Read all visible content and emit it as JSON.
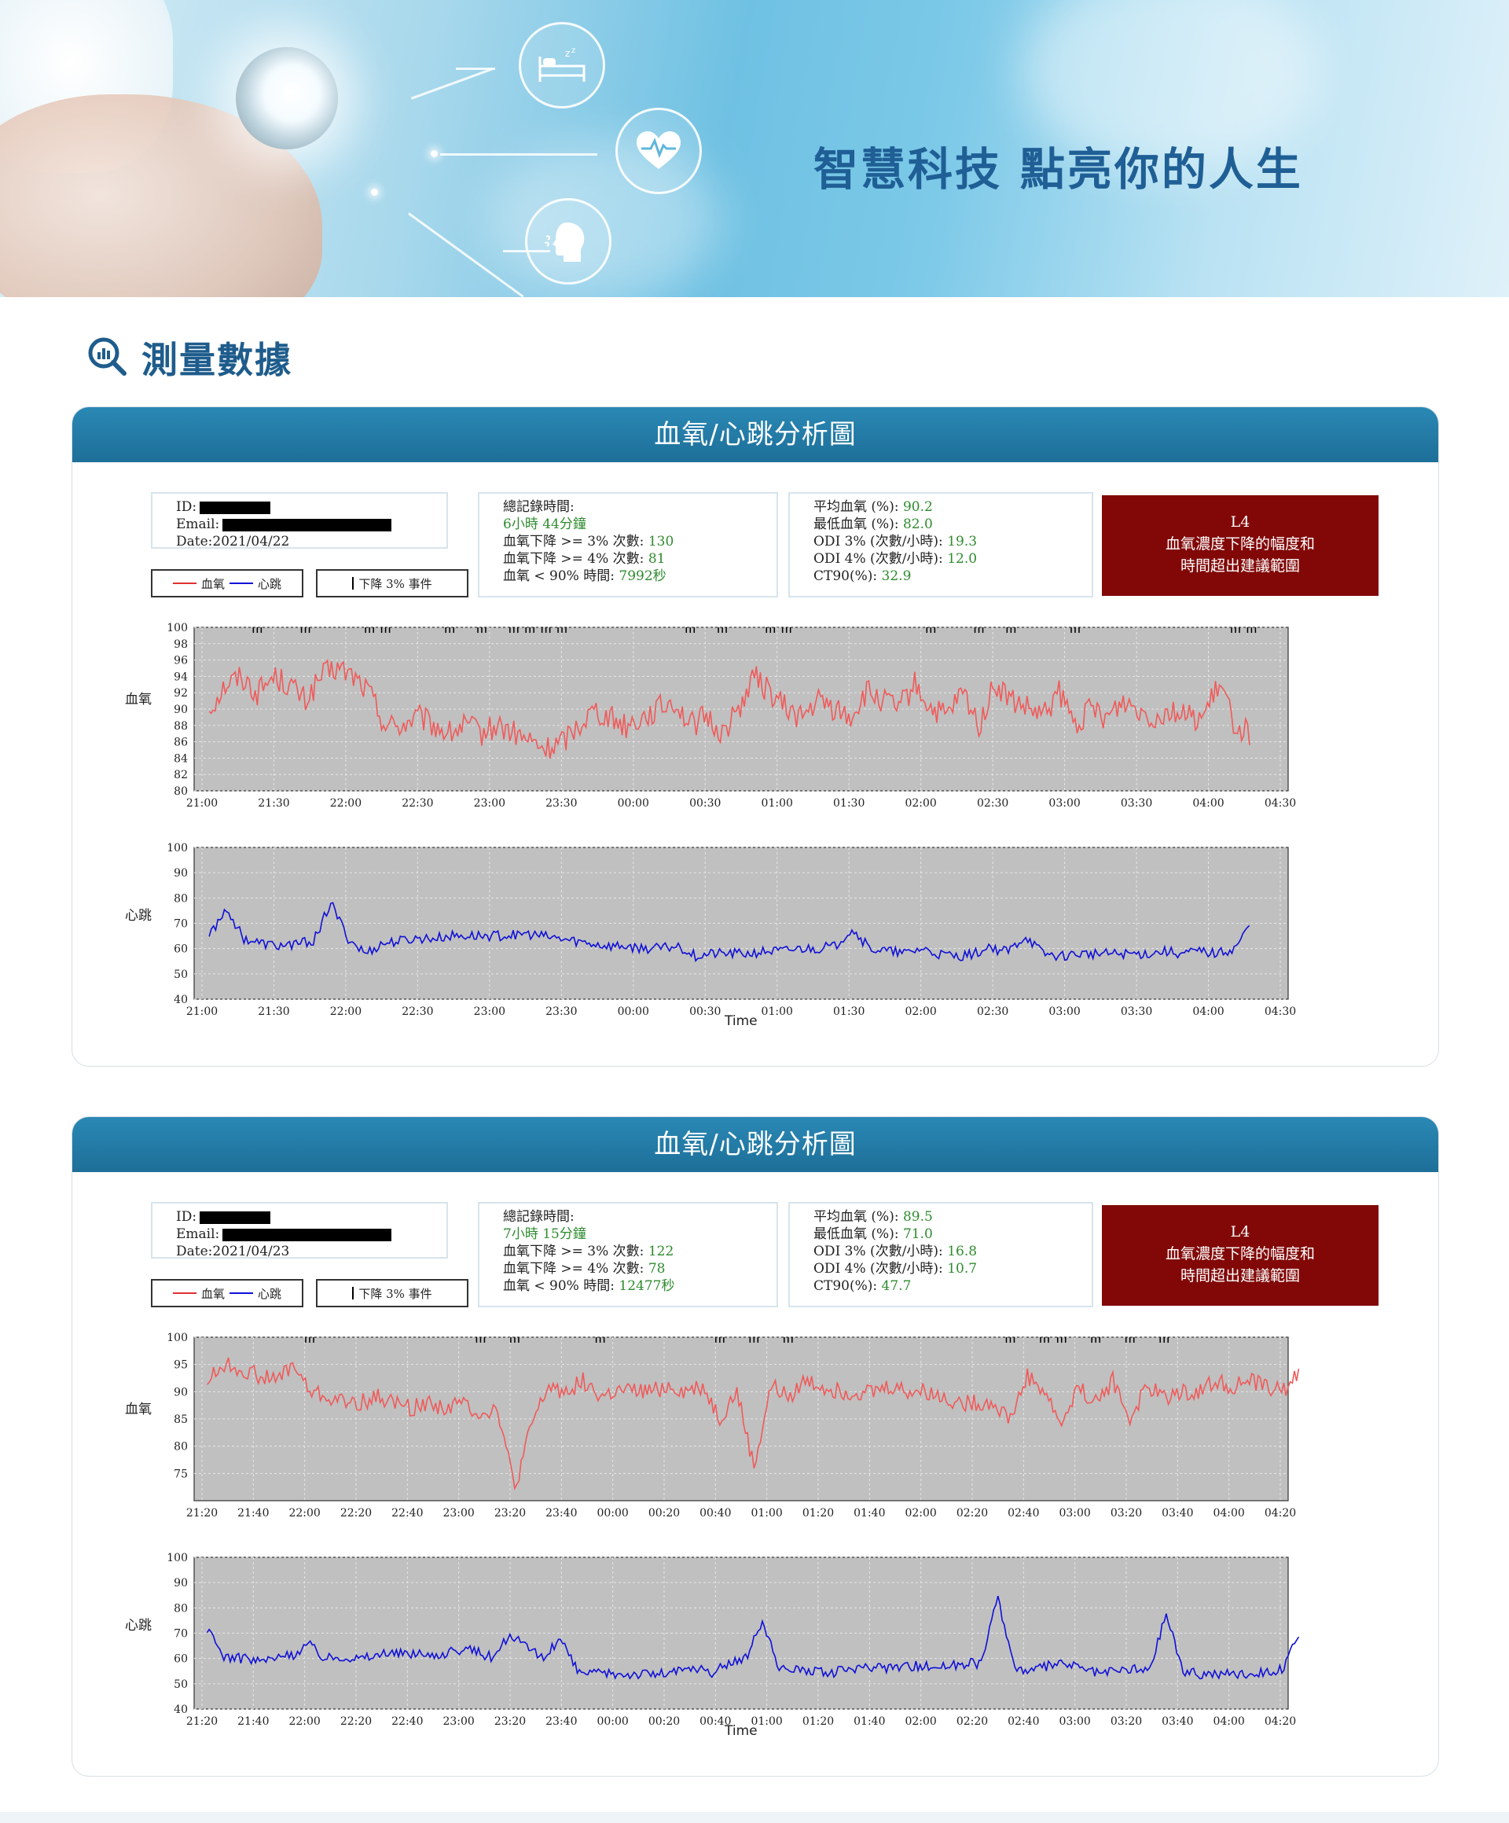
{
  "banner": {
    "slogan": "智慧科技 點亮你的人生",
    "icons": [
      "sleep-bed-icon",
      "heart-pulse-icon",
      "breathing-person-icon"
    ]
  },
  "section": {
    "title": "測量數據",
    "icon": "search-chart-icon"
  },
  "colors": {
    "spo2": "#f05a5a",
    "hr": "#1010d8",
    "header": "#2280ad",
    "alert": "#820808",
    "plot_bg": "#c0c0c0",
    "green": "#2e8b2e"
  },
  "cards": [
    {
      "header": "血氧/心跳分析圖",
      "id_label": "ID:",
      "email_label": "Email:",
      "date": "Date:2021/04/22",
      "legend": {
        "spo2": "血氧",
        "hr": "心跳",
        "event": "下降 3% 事件"
      },
      "summary": {
        "total_time_label": "總記錄時間:",
        "total_time": "6小時 44分鐘",
        "drop3_label": "血氧下降 >= 3% 次數:",
        "drop3": "130",
        "drop4_label": "血氧下降 >= 4% 次數:",
        "drop4": "81",
        "lt90_label": "血氧 < 90% 時間:",
        "lt90": "7992秒"
      },
      "stats": {
        "avg_label": "平均血氧 (%):",
        "avg": "90.2",
        "min_label": "最低血氧 (%):",
        "min": "82.0",
        "odi3_label": "ODI 3% (次數/小時):",
        "odi3": "19.3",
        "odi4_label": "ODI 4% (次數/小時):",
        "odi4": "12.0",
        "ct90_label": "CT90(%):",
        "ct90": "32.9"
      },
      "alert": {
        "level": "L4",
        "line1": "血氧濃度下降的幅度和",
        "line2": "時間超出建議範圍"
      },
      "spo2_label": "血氧",
      "hr_label": "心跳",
      "time_label": "Time"
    },
    {
      "header": "血氧/心跳分析圖",
      "id_label": "ID:",
      "email_label": "Email:",
      "date": "Date:2021/04/23",
      "legend": {
        "spo2": "血氧",
        "hr": "心跳",
        "event": "下降 3% 事件"
      },
      "summary": {
        "total_time_label": "總記錄時間:",
        "total_time": "7小時 15分鐘",
        "drop3_label": "血氧下降 >= 3% 次數:",
        "drop3": "122",
        "drop4_label": "血氧下降 >= 4% 次數:",
        "drop4": "78",
        "lt90_label": "血氧 < 90% 時間:",
        "lt90": "12477秒"
      },
      "stats": {
        "avg_label": "平均血氧 (%):",
        "avg": "89.5",
        "min_label": "最低血氧 (%):",
        "min": "71.0",
        "odi3_label": "ODI 3% (次數/小時):",
        "odi3": "16.8",
        "odi4_label": "ODI 4% (次數/小時):",
        "odi4": "10.7",
        "ct90_label": "CT90(%):",
        "ct90": "47.7"
      },
      "alert": {
        "level": "L4",
        "line1": "血氧濃度下降的幅度和",
        "line2": "時間超出建議範圍"
      },
      "spo2_label": "血氧",
      "hr_label": "心跳",
      "time_label": "Time"
    }
  ],
  "chart_data": [
    {
      "type": "line",
      "x_ticks": [
        "21:00",
        "21:30",
        "22:00",
        "22:30",
        "23:00",
        "23:30",
        "00:00",
        "00:30",
        "01:00",
        "01:30",
        "02:00",
        "02:30",
        "03:00",
        "03:30",
        "04:00",
        "04:30"
      ],
      "y_ticks": [
        80,
        82,
        84,
        86,
        88,
        90,
        92,
        94,
        96,
        98,
        100
      ],
      "ylim": [
        80,
        100
      ],
      "series": [
        {
          "name": "血氧",
          "x_start": 0.1,
          "x_end": 14.6,
          "values": [
            90,
            93,
            94,
            92,
            94,
            93,
            91,
            94,
            95,
            94,
            92,
            88,
            88,
            89,
            88,
            87,
            88,
            87,
            88,
            87,
            86,
            85,
            86,
            88,
            90,
            89,
            88,
            89,
            90,
            91,
            88,
            89,
            87,
            90,
            94,
            92,
            90,
            89,
            91,
            90,
            89,
            92,
            91,
            90,
            93,
            90,
            89,
            92,
            88,
            93,
            91,
            90,
            89,
            92,
            88,
            90,
            89,
            91,
            90,
            89,
            90,
            89,
            89,
            93,
            88,
            87
          ]
        }
      ]
    },
    {
      "type": "line",
      "x_ticks": [
        "21:00",
        "21:30",
        "22:00",
        "22:30",
        "23:00",
        "23:30",
        "00:00",
        "00:30",
        "01:00",
        "01:30",
        "02:00",
        "02:30",
        "03:00",
        "03:30",
        "04:00",
        "04:30"
      ],
      "y_ticks": [
        40,
        50,
        60,
        70,
        80,
        90,
        100
      ],
      "ylim": [
        40,
        100
      ],
      "xlabel": "Time",
      "series": [
        {
          "name": "心跳",
          "x_start": 0.1,
          "x_end": 14.6,
          "values": [
            65,
            76,
            64,
            62,
            61,
            62,
            63,
            78,
            64,
            58,
            62,
            63,
            64,
            64,
            65,
            65,
            65,
            65,
            66,
            65,
            64,
            63,
            62,
            61,
            61,
            60,
            60,
            61,
            57,
            58,
            58,
            58,
            59,
            59,
            60,
            60,
            61,
            68,
            60,
            59,
            58,
            60,
            58,
            57,
            58,
            60,
            59,
            65,
            58,
            57,
            58,
            58,
            58,
            58,
            58,
            59,
            58,
            59,
            58,
            60,
            70
          ]
        }
      ]
    },
    {
      "type": "line",
      "x_ticks": [
        "21:20",
        "21:40",
        "22:00",
        "22:20",
        "22:40",
        "23:00",
        "23:20",
        "23:40",
        "00:00",
        "00:20",
        "00:40",
        "01:00",
        "01:20",
        "01:40",
        "02:00",
        "02:20",
        "02:40",
        "03:00",
        "03:20",
        "03:40",
        "04:00",
        "04:20"
      ],
      "y_ticks": [
        75,
        80,
        85,
        90,
        95,
        100
      ],
      "ylim": [
        70,
        100
      ],
      "series": [
        {
          "name": "血氧",
          "x_start": 0.1,
          "x_end": 21.4,
          "values": [
            92,
            95,
            94,
            93,
            92,
            95,
            90,
            89,
            88,
            88,
            89,
            88,
            87,
            88,
            87,
            88,
            86,
            87,
            72,
            84,
            91,
            90,
            92,
            89,
            90,
            90,
            90,
            91,
            90,
            91,
            85,
            90,
            76,
            91,
            89,
            92,
            91,
            90,
            90,
            90,
            91,
            90,
            90,
            89,
            88,
            88,
            88,
            85,
            93,
            90,
            84,
            91,
            88,
            92,
            85,
            91,
            89,
            90,
            90,
            92,
            91,
            92,
            91,
            90,
            94
          ]
        }
      ]
    },
    {
      "type": "line",
      "x_ticks": [
        "21:20",
        "21:40",
        "22:00",
        "22:20",
        "22:40",
        "23:00",
        "23:20",
        "23:40",
        "00:00",
        "00:20",
        "00:40",
        "01:00",
        "01:20",
        "01:40",
        "02:00",
        "02:20",
        "02:40",
        "03:00",
        "03:20",
        "03:40",
        "04:00",
        "04:20"
      ],
      "y_ticks": [
        40,
        50,
        60,
        70,
        80,
        90,
        100
      ],
      "ylim": [
        40,
        100
      ],
      "xlabel": "Time",
      "series": [
        {
          "name": "心跳",
          "x_start": 0.1,
          "x_end": 21.4,
          "values": [
            71,
            61,
            60,
            59,
            60,
            61,
            66,
            60,
            61,
            60,
            61,
            62,
            62,
            61,
            62,
            63,
            63,
            60,
            70,
            64,
            60,
            68,
            55,
            54,
            54,
            54,
            54,
            54,
            55,
            56,
            54,
            58,
            60,
            75,
            55,
            56,
            55,
            54,
            56,
            56,
            56,
            57,
            57,
            57,
            57,
            58,
            58,
            84,
            56,
            55,
            57,
            58,
            56,
            54,
            55,
            56,
            55,
            78,
            55,
            54,
            54,
            54,
            54,
            55,
            56,
            72
          ]
        }
      ]
    }
  ]
}
